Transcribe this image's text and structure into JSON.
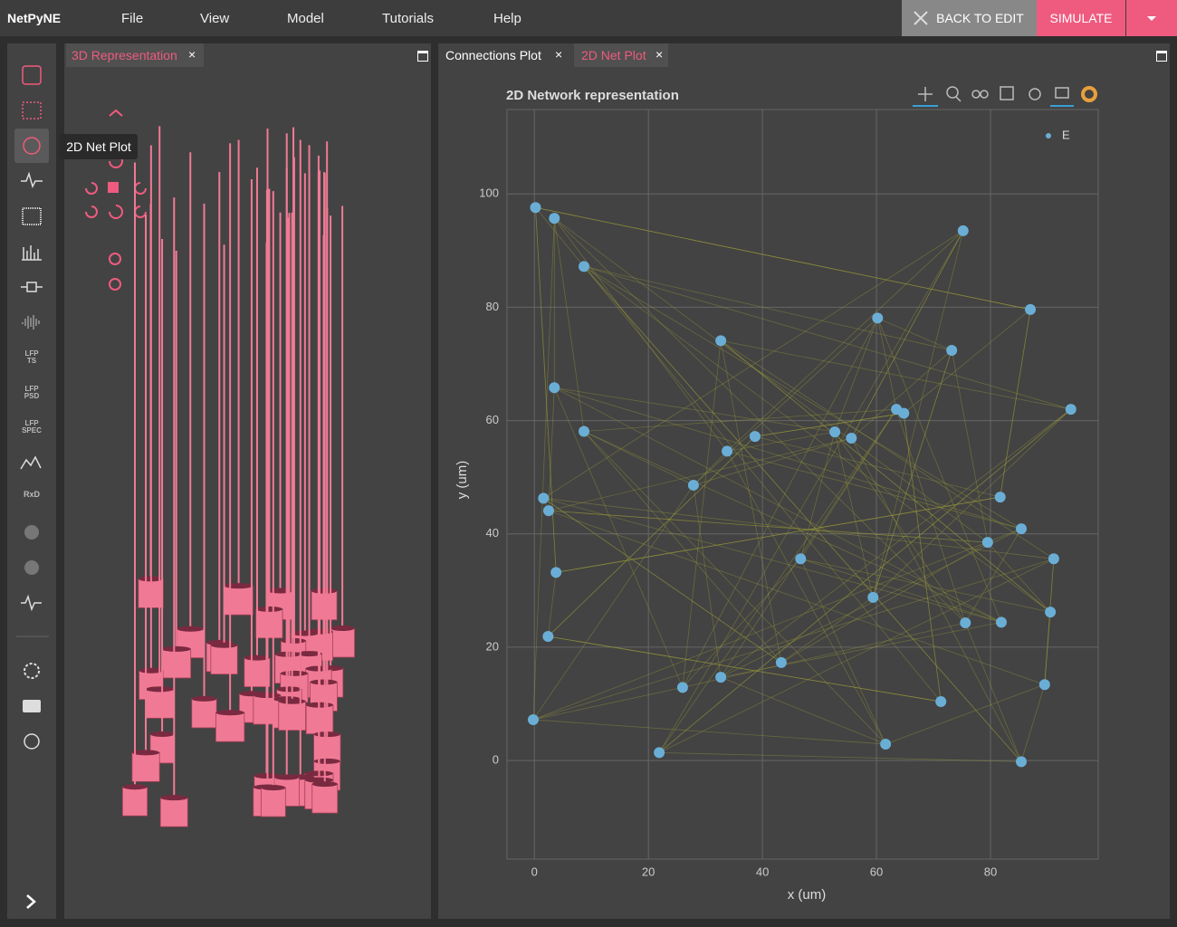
{
  "header": {
    "brand": "NetPyNE",
    "menu": [
      "File",
      "View",
      "Model",
      "Tutorials",
      "Help"
    ],
    "back_button": "BACK TO EDIT",
    "simulate_button": "SIMULATE"
  },
  "sidebar": {
    "labels": [
      "LFP\nTS",
      "LFP\nPSD",
      "LFP\nSPEC",
      "RxD"
    ],
    "tooltip": "2D Net Plot"
  },
  "left_panel": {
    "tabs": [
      "3D Representation"
    ]
  },
  "right_panel": {
    "tabs": [
      "Connections Plot",
      "2D Net Plot"
    ]
  },
  "chart_data": {
    "type": "scatter",
    "title": "2D Network representation",
    "xlabel": "x (um)",
    "ylabel": "y (um)",
    "series": [
      {
        "name": "E",
        "color": "#6aaed6",
        "x": [
          0.2,
          3.5,
          8.7,
          75.2,
          60.2,
          87.0,
          32.7,
          73.2,
          3.5,
          63.5,
          64.8,
          94.1,
          8.7,
          52.7,
          55.6,
          38.7,
          33.8,
          27.9,
          1.6,
          2.5,
          81.7,
          85.4,
          79.5,
          91.1,
          46.7,
          3.8,
          59.4,
          90.5,
          75.6,
          81.9,
          2.4,
          43.3,
          32.7,
          26.0,
          89.5,
          71.3,
          -0.2,
          61.6,
          21.9,
          85.4
        ],
        "values": [
          97.6,
          95.7,
          87.2,
          93.5,
          78.1,
          79.6,
          74.1,
          72.4,
          65.8,
          62.0,
          61.3,
          62.0,
          58.1,
          58.0,
          56.9,
          57.2,
          54.6,
          48.6,
          46.3,
          44.1,
          46.5,
          40.9,
          38.5,
          35.6,
          35.6,
          33.2,
          28.8,
          26.2,
          24.3,
          24.4,
          21.9,
          17.3,
          14.7,
          12.9,
          13.4,
          10.4,
          7.2,
          2.9,
          1.4,
          -0.2
        ]
      }
    ],
    "xlim": [
      -4.8,
      98.9
    ],
    "ylim": [
      -17.4,
      114.9
    ],
    "xticks": [
      0,
      20,
      40,
      60,
      80
    ],
    "yticks": [
      0,
      20,
      40,
      60,
      80,
      100
    ],
    "grid": true,
    "legend": "top-right"
  }
}
